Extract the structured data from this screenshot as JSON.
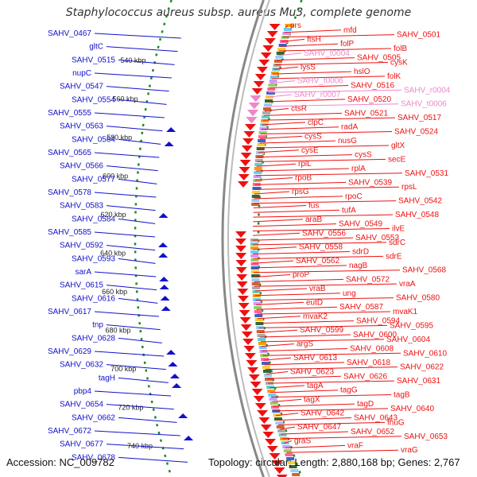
{
  "title": "Staphylococcus aureus subsp. aureus Mu3, complete genome",
  "footer": {
    "accession": "Accession: NC_009782",
    "summary": "Topology: circular; Length: 2,880,168 bp; Genes: 2,767"
  },
  "colors": {
    "forward": "#ee1111",
    "reverse": "#1111cc",
    "rna": "#ee88cc",
    "backbone": "#888888",
    "ticks": "#228822"
  },
  "scale_ticks": [
    {
      "label": "540 kbp"
    },
    {
      "label": "560 kbp"
    },
    {
      "label": "580 kbp"
    },
    {
      "label": "600 kbp"
    },
    {
      "label": "620 kbp"
    },
    {
      "label": "640 kbp"
    },
    {
      "label": "660 kbp"
    },
    {
      "label": "680 kbp"
    },
    {
      "label": "700 kbp"
    },
    {
      "label": "720 kbp"
    },
    {
      "label": "740 kbp"
    }
  ],
  "left_labels": [
    "SAHV_0467",
    "gltC",
    "SAHV_0515",
    "nupC",
    "SAHV_0547",
    "SAHV_0554",
    "SAHV_0555",
    "SAHV_0563",
    "SAHV_0564",
    "SAHV_0565",
    "SAHV_0566",
    "SAHV_0577",
    "SAHV_0578",
    "SAHV_0583",
    "SAHV_0584",
    "SAHV_0585",
    "SAHV_0592",
    "SAHV_0593",
    "sarA",
    "SAHV_0615",
    "SAHV_0616",
    "SAHV_0617",
    "tnp",
    "SAHV_0628",
    "SAHV_0629",
    "SAHV_0632",
    "tagH",
    "pbp4",
    "SAHV_0654",
    "SAHV_0662",
    "SAHV_0672",
    "SAHV_0677",
    "SAHV_0678"
  ],
  "right_labels": [
    "prs",
    "mfd",
    "SAHV_0501",
    "ftsH",
    "folP",
    "folB",
    "SAHV_t0004",
    "SAHV_0505",
    "cysK",
    "lysS",
    "hslO",
    "folK",
    "SAHV_t0006",
    "SAHV_0516",
    "SAHV_r0004",
    "SAHV_r0007",
    "SAHV_0520",
    "SAHV_t0006",
    "ctsR",
    "SAHV_0521",
    "SAHV_0517",
    "clpC",
    "radA",
    "SAHV_0524",
    "cysS",
    "nusG",
    "gltX",
    "cysE",
    "cysS",
    "secE",
    "rplL",
    "rplA",
    "SAHV_0531",
    "rpoB",
    "SAHV_0539",
    "rpsL",
    "rpsG",
    "rpoC",
    "SAHV_0542",
    "fus",
    "tufA",
    "SAHV_0548",
    "araB",
    "SAHV_0549",
    "ilvE",
    "SAHV_0556",
    "SAHV_0553",
    "sdrC",
    "SAHV_0558",
    "sdrD",
    "sdrE",
    "SAHV_0562",
    "nagB",
    "SAHV_0568",
    "proP",
    "SAHV_0572",
    "vraA",
    "vraB",
    "ung",
    "SAHV_0580",
    "eutD",
    "SAHV_0587",
    "mvaK1",
    "mvaK2",
    "SAHV_0594",
    "SAHV_0595",
    "SAHV_0599",
    "SAHV_0600",
    "SAHV_0604",
    "argS",
    "SAHV_0608",
    "SAHV_0610",
    "SAHV_0613",
    "SAHV_0618",
    "SAHV_0622",
    "SAHV_0623",
    "SAHV_0626",
    "SAHV_0631",
    "tagA",
    "tagG",
    "tagB",
    "tagX",
    "tagD",
    "SAHV_0640",
    "SAHV_0642",
    "SAHV_0643",
    "fhuG",
    "SAHV_0647",
    "SAHV_0652",
    "SAHV_0653",
    "graS",
    "vraF",
    "vraG"
  ]
}
